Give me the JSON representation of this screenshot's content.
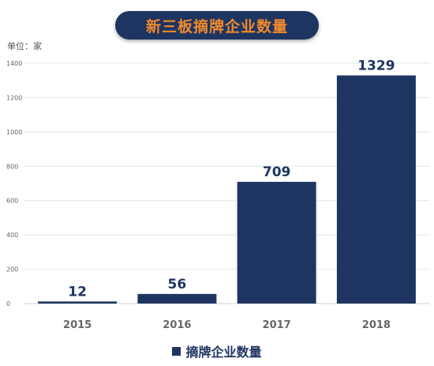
{
  "chart_data": {
    "type": "bar",
    "title": "新三板摘牌企业数量",
    "unit_label": "单位：家",
    "categories": [
      "2015",
      "2016",
      "2017",
      "2018"
    ],
    "series": [
      {
        "name": "摘牌企业数量",
        "values": [
          12,
          56,
          709,
          1329
        ]
      }
    ],
    "ylim": [
      0,
      1400
    ],
    "yticks": [
      0,
      200,
      400,
      600,
      800,
      1000,
      1200,
      1400
    ],
    "grid": true,
    "legend_position": "bottom",
    "colors": {
      "bar": "#1f3561",
      "title_bg": "#1f3561",
      "title_text": "#f08a2c",
      "grid": "#e4e4e4"
    }
  }
}
